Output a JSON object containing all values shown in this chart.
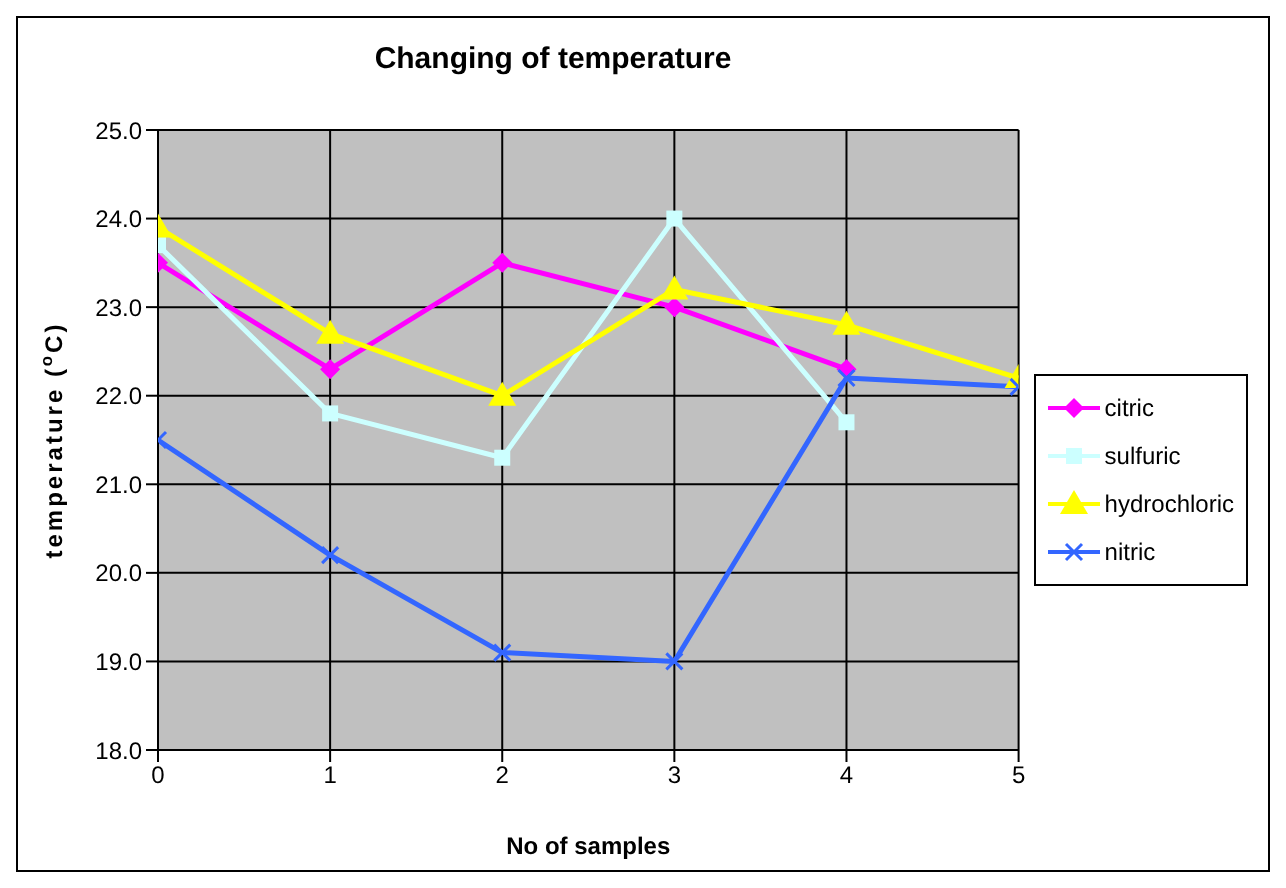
{
  "chart_data": {
    "type": "line",
    "title": "Changing of temperature",
    "xlabel": "No of samples",
    "ylabel": "temperature ($^{o}$C)",
    "x": [
      0,
      1,
      2,
      3,
      4,
      5
    ],
    "xlim": [
      0,
      5
    ],
    "xticks": [
      0,
      1,
      2,
      3,
      4,
      5
    ],
    "ylim": [
      18,
      25
    ],
    "yticks": [
      {
        "value": 18,
        "label": "18.0"
      },
      {
        "value": 19,
        "label": "19.0"
      },
      {
        "value": 20,
        "label": "20.0"
      },
      {
        "value": 21,
        "label": "21.0"
      },
      {
        "value": 22,
        "label": "22.0"
      },
      {
        "value": 23,
        "label": "23.0"
      },
      {
        "value": 24,
        "label": "24.0"
      },
      {
        "value": 25,
        "label": "25.0"
      }
    ],
    "grid": true,
    "legend": "right",
    "series": [
      {
        "name": "citric",
        "color": "#ff00ff",
        "marker": "diamond",
        "values": [
          23.5,
          22.3,
          23.5,
          23.0,
          22.3,
          null
        ]
      },
      {
        "name": "sulfuric",
        "color": "#ccffff",
        "marker": "square",
        "values": [
          23.7,
          21.8,
          21.3,
          24.0,
          21.7,
          null
        ]
      },
      {
        "name": "hydrochloric",
        "color": "#ffff00",
        "marker": "triangle",
        "values": [
          23.9,
          22.7,
          22.0,
          23.2,
          22.8,
          22.2
        ]
      },
      {
        "name": "nitric",
        "color": "#3366ff",
        "marker": "cross",
        "values": [
          21.5,
          20.2,
          19.1,
          19.0,
          22.2,
          22.1
        ]
      }
    ]
  }
}
